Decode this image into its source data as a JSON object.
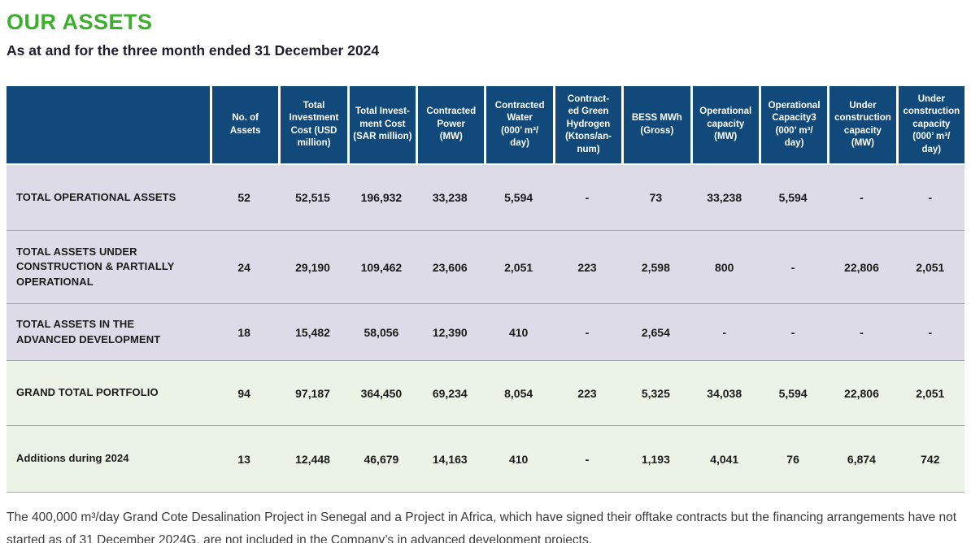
{
  "page": {
    "title": "OUR ASSETS",
    "subtitle": "As at and for the three month ended 31 December 2024",
    "footnote": "The 400,000 m³/day Grand Cote Desalination Project in Senegal and a Project in Africa, which have signed their offtake contracts but the financing arrangements have not started as of 31 December 2024G, are not included in the Company’s in advanced development projects."
  },
  "colors": {
    "title_green": "#3CB02C",
    "header_blue": "#114A7A",
    "row_lavender": "#DCDBE7",
    "row_green": "#EAF3E6",
    "separator_gray": "#A6A5B1",
    "text_dark": "#1B1B1B",
    "subtitle_dark": "#1D1D2C",
    "footnote_gray": "#3A3A3A"
  },
  "table": {
    "column_headers": [
      "",
      "No. of\nAssets",
      "Total\nInvestment\nCost (USD\nmillion)",
      "Total Invest-\nment Cost\n(SAR million)",
      "Contracted\nPower\n(MW)",
      "Contracted\nWater\n(000’ m³/\nday)",
      "Contract-\ned Green\nHydrogen\n(Ktons/an-\nnum)",
      "BESS MWh\n(Gross)",
      "Operational\ncapacity\n(MW)",
      "Operational\nCapacity3\n(000’ m³/\nday)",
      "Under\nconstruction\ncapacity\n(MW)",
      "Under\nconstruction\ncapacity\n(000’ m³/\nday)"
    ],
    "rows": [
      {
        "label": "TOTAL OPERATIONAL ASSETS",
        "theme": "lavender",
        "values": [
          "52",
          "52,515",
          "196,932",
          "33,238",
          "5,594",
          "-",
          "73",
          "33,238",
          "5,594",
          "-",
          "-"
        ]
      },
      {
        "label": "TOTAL ASSETS UNDER CONSTRUCTION & PARTIALLY OPERATIONAL",
        "theme": "lavender",
        "values": [
          "24",
          "29,190",
          "109,462",
          "23,606",
          "2,051",
          "223",
          "2,598",
          "800",
          "-",
          "22,806",
          "2,051"
        ]
      },
      {
        "label": "TOTAL ASSETS IN THE ADVANCED DEVELOPMENT",
        "theme": "lavender",
        "values": [
          "18",
          "15,482",
          "58,056",
          "12,390",
          "410",
          "-",
          "2,654",
          "-",
          "-",
          "-",
          "-"
        ]
      },
      {
        "label": "GRAND TOTAL PORTFOLIO",
        "theme": "green",
        "values": [
          "94",
          "97,187",
          "364,450",
          "69,234",
          "8,054",
          "223",
          "5,325",
          "34,038",
          "5,594",
          "22,806",
          "2,051"
        ]
      },
      {
        "label": "Additions during 2024",
        "theme": "green",
        "values": [
          "13",
          "12,448",
          "46,679",
          "14,163",
          "410",
          "-",
          "1,193",
          "4,041",
          "76",
          "6,874",
          "742"
        ]
      }
    ]
  }
}
